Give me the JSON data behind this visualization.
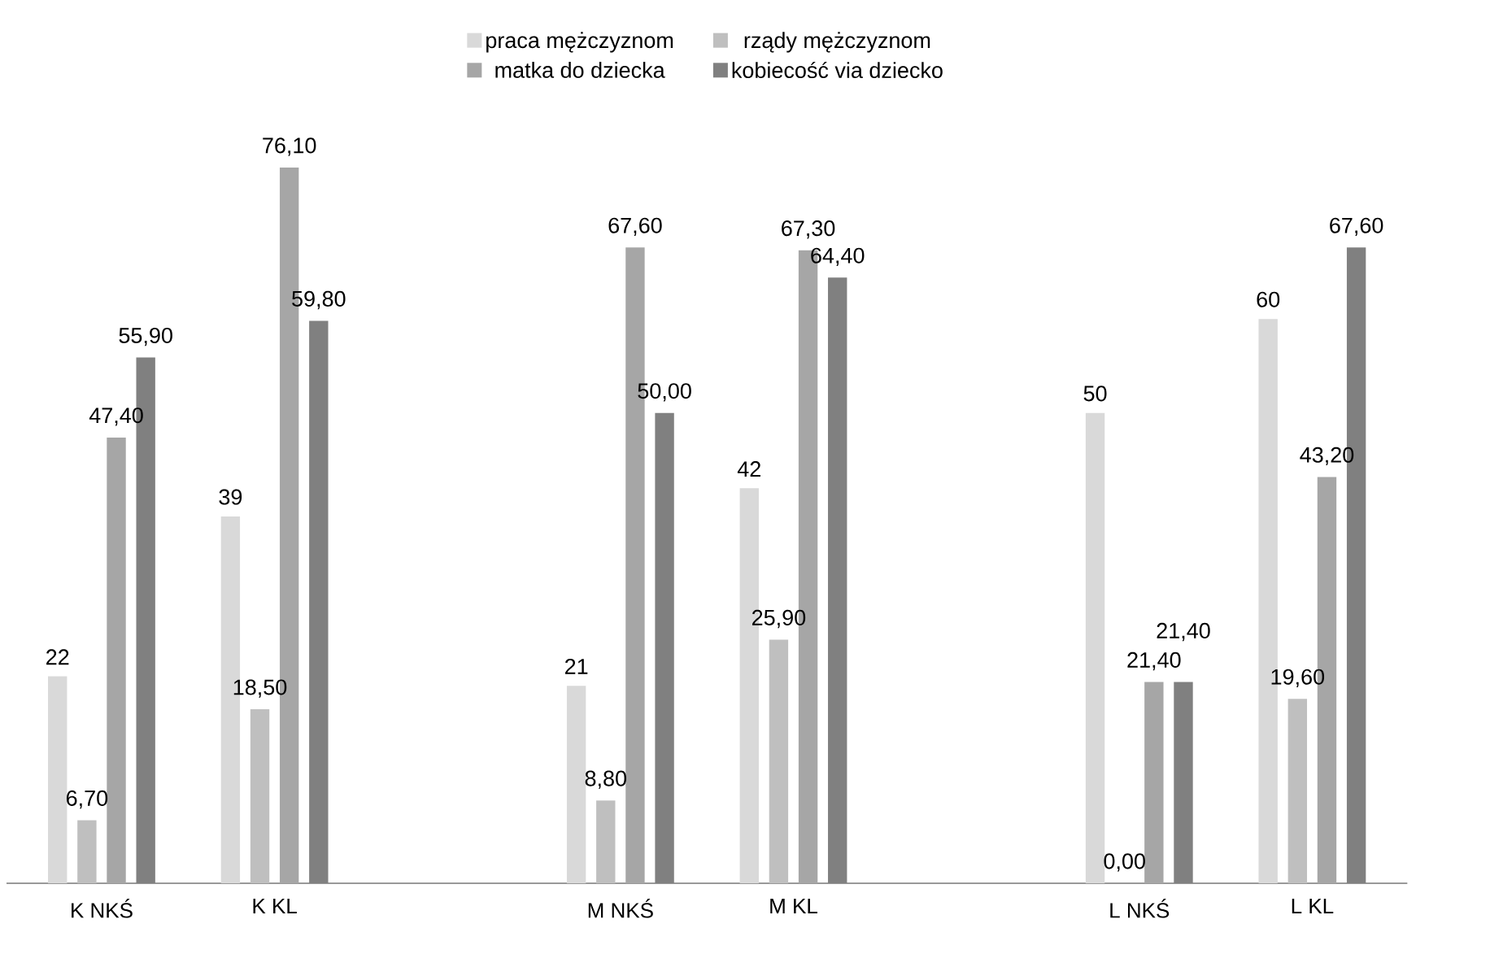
{
  "chart_data": {
    "type": "bar",
    "categories": [
      "K NKŚ",
      "K KL",
      null,
      "M NKŚ",
      "M KL",
      null,
      "L NKŚ",
      "L KL"
    ],
    "series": [
      {
        "name": "praca mężczyznom",
        "color": "#d9d9d9",
        "values": [
          22,
          39,
          null,
          21,
          42,
          null,
          50,
          60
        ],
        "value_labels": [
          "22",
          "39",
          null,
          "21",
          "42",
          null,
          "50",
          "60"
        ]
      },
      {
        "name": "rządy mężczyznom",
        "color": "#bfbfbf",
        "values": [
          6.7,
          18.5,
          null,
          8.8,
          25.9,
          null,
          0,
          19.6
        ],
        "value_labels": [
          "6,70",
          "18,50",
          null,
          "8,80",
          "25,90",
          null,
          "0,00",
          "19,60"
        ]
      },
      {
        "name": "matka do dziecka",
        "color": "#a6a6a6",
        "values": [
          47.4,
          76.1,
          null,
          67.6,
          67.3,
          null,
          21.4,
          43.2
        ],
        "value_labels": [
          "47,40",
          "76,10",
          null,
          "67,60",
          "67,30",
          null,
          "21,40",
          "43,20"
        ]
      },
      {
        "name": "kobiecość via dziecko",
        "color": "#808080",
        "values": [
          55.9,
          59.8,
          null,
          50,
          64.4,
          null,
          21.4,
          67.6
        ],
        "value_labels": [
          "55,90",
          "59,80",
          null,
          "50,00",
          "64,40",
          null,
          "21,40",
          "67,60"
        ]
      }
    ],
    "tick_labels": "x",
    "legend": "top",
    "grid": false
  }
}
